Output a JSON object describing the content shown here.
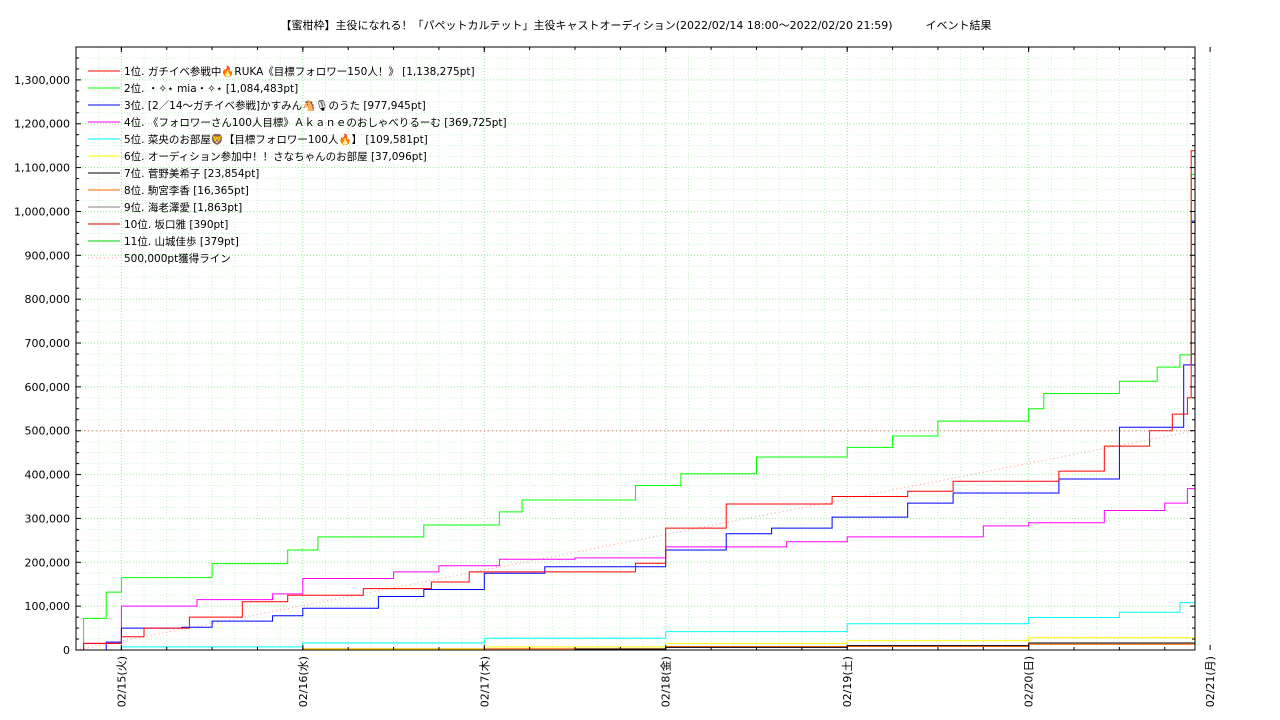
{
  "chart_data": {
    "type": "line",
    "title": "【蜜柑枠】主役になれる！「パペットカルテット」主役キャストオーディション(2022/02/14 18:00〜2022/02/20 21:59)　　　イベント結果",
    "xlabel": "",
    "ylabel": "",
    "ylim": [
      0,
      1375000
    ],
    "xlim": [
      "2022/02/14 18:00",
      "2022/02/20 22:00"
    ],
    "x_ticks": [
      "02/15(火)",
      "02/16(水)",
      "02/17(木)",
      "02/18(金)",
      "02/19(土)",
      "02/20(日)",
      "02/21(月)"
    ],
    "y_ticks": [
      "0",
      "100,000",
      "200,000",
      "300,000",
      "400,000",
      "500,000",
      "600,000",
      "700,000",
      "800,000",
      "900,000",
      "1,000,000",
      "1,100,000",
      "1,200,000",
      "1,300,000"
    ],
    "grid": true,
    "legend_position": "top-left",
    "series": [
      {
        "name": "1位. ガチイベ参戦中🔥RUKA《目標フォロワー150人！》 [1,138,275pt]",
        "color": "#ff0000",
        "x": [
          "2022/02/14 18:00",
          "2022/02/14 19:00",
          "2022/02/14 21:00",
          "2022/02/15 00:00",
          "2022/02/15 03:00",
          "2022/02/15 09:00",
          "2022/02/15 16:00",
          "2022/02/15 22:00",
          "2022/02/16 08:00",
          "2022/02/16 17:00",
          "2022/02/16 22:00",
          "2022/02/17 08:00",
          "2022/02/17 20:00",
          "2022/02/18 00:00",
          "2022/02/18 08:00",
          "2022/02/18 14:00",
          "2022/02/18 22:00",
          "2022/02/19 08:00",
          "2022/02/19 14:00",
          "2022/02/19 22:00",
          "2022/02/20 04:00",
          "2022/02/20 10:00",
          "2022/02/20 16:00",
          "2022/02/20 19:00",
          "2022/02/20 21:00",
          "2022/02/20 21:30",
          "2022/02/20 22:00"
        ],
        "y": [
          0,
          15000,
          15000,
          30000,
          50000,
          75000,
          110000,
          125000,
          140000,
          155000,
          178000,
          178000,
          198000,
          278000,
          333000,
          333000,
          350000,
          362000,
          385000,
          385000,
          408000,
          465000,
          500000,
          538000,
          575000,
          1138275,
          1138275
        ]
      },
      {
        "name": "2位. ・✧⋆ mia・✧⋆ [1,084,483pt]",
        "color": "#00ff00",
        "x": [
          "2022/02/14 18:00",
          "2022/02/14 19:00",
          "2022/02/14 20:00",
          "2022/02/14 22:00",
          "2022/02/15 00:00",
          "2022/02/15 12:00",
          "2022/02/15 22:00",
          "2022/02/16 02:00",
          "2022/02/16 16:00",
          "2022/02/17 02:00",
          "2022/02/17 05:00",
          "2022/02/17 20:00",
          "2022/02/18 02:00",
          "2022/02/18 12:00",
          "2022/02/19 00:00",
          "2022/02/19 06:00",
          "2022/02/19 12:00",
          "2022/02/20 00:00",
          "2022/02/20 02:00",
          "2022/02/20 12:00",
          "2022/02/20 17:00",
          "2022/02/20 20:00",
          "2022/02/20 21:30",
          "2022/02/20 22:00"
        ],
        "y": [
          0,
          72000,
          72000,
          132000,
          165000,
          197000,
          228000,
          258000,
          285000,
          315000,
          342000,
          375000,
          402000,
          440000,
          462000,
          488000,
          522000,
          550000,
          585000,
          613000,
          645000,
          673000,
          1084483,
          1084483
        ]
      },
      {
        "name": "3位. [2／14〜ガチイベ参戦]かすみん🐴🎙のうた [977,945pt]",
        "color": "#0000ff",
        "x": [
          "2022/02/14 18:00",
          "2022/02/14 20:00",
          "2022/02/14 22:00",
          "2022/02/15 00:00",
          "2022/02/15 08:00",
          "2022/02/15 12:00",
          "2022/02/15 20:00",
          "2022/02/16 00:00",
          "2022/02/16 10:00",
          "2022/02/16 16:00",
          "2022/02/17 00:00",
          "2022/02/17 08:00",
          "2022/02/17 14:00",
          "2022/02/18 00:00",
          "2022/02/18 08:00",
          "2022/02/18 14:00",
          "2022/02/18 22:00",
          "2022/02/19 08:00",
          "2022/02/19 14:00",
          "2022/02/19 22:00",
          "2022/02/20 04:00",
          "2022/02/20 12:00",
          "2022/02/20 19:00",
          "2022/02/20 20:30",
          "2022/02/20 21:30",
          "2022/02/20 22:00"
        ],
        "y": [
          0,
          0,
          18000,
          50000,
          52000,
          66000,
          78000,
          95000,
          122000,
          138000,
          175000,
          190000,
          190000,
          228000,
          265000,
          278000,
          303000,
          335000,
          358000,
          358000,
          390000,
          508000,
          508000,
          650000,
          977945,
          977945
        ]
      },
      {
        "name": "4位. 《フォロワーさん100人目標》Ａｋａｎｅのおしゃべりるーむ [369,725pt]",
        "color": "#ff00ff",
        "x": [
          "2022/02/14 18:00",
          "2022/02/14 19:00",
          "2022/02/14 22:00",
          "2022/02/15 00:00",
          "2022/02/15 10:00",
          "2022/02/15 20:00",
          "2022/02/16 00:00",
          "2022/02/16 12:00",
          "2022/02/16 18:00",
          "2022/02/17 02:00",
          "2022/02/17 12:00",
          "2022/02/18 00:00",
          "2022/02/18 16:00",
          "2022/02/19 00:00",
          "2022/02/19 18:00",
          "2022/02/20 00:00",
          "2022/02/20 10:00",
          "2022/02/20 18:00",
          "2022/02/20 21:00",
          "2022/02/20 22:00"
        ],
        "y": [
          0,
          15000,
          15000,
          100000,
          115000,
          128000,
          163000,
          178000,
          192000,
          207000,
          210000,
          235000,
          247000,
          258000,
          283000,
          290000,
          318000,
          335000,
          368000,
          369725
        ]
      },
      {
        "name": "5位. 菜央のお部屋🦁【目標フォロワー100人🔥】 [109,581pt]",
        "color": "#00ffff",
        "x": [
          "2022/02/14 18:00",
          "2022/02/15 00:00",
          "2022/02/16 00:00",
          "2022/02/17 00:00",
          "2022/02/18 00:00",
          "2022/02/19 00:00",
          "2022/02/20 00:00",
          "2022/02/20 12:00",
          "2022/02/20 20:00",
          "2022/02/20 22:00"
        ],
        "y": [
          0,
          7000,
          16000,
          27000,
          42000,
          60000,
          74000,
          86000,
          108000,
          109581
        ]
      },
      {
        "name": "6位. オーディション参加中！！さなちゃんのお部屋 [37,096pt]",
        "color": "#ffff00",
        "x": [
          "2022/02/14 18:00",
          "2022/02/16 00:00",
          "2022/02/17 00:00",
          "2022/02/18 00:00",
          "2022/02/19 00:00",
          "2022/02/20 00:00",
          "2022/02/20 22:00"
        ],
        "y": [
          0,
          2000,
          7000,
          15000,
          21000,
          28000,
          37096
        ]
      },
      {
        "name": "7位. 菅野美希子 [23,854pt]",
        "color": "#000000",
        "x": [
          "2022/02/14 18:00",
          "2022/02/17 12:00",
          "2022/02/18 00:00",
          "2022/02/19 00:00",
          "2022/02/20 00:00",
          "2022/02/20 22:00"
        ],
        "y": [
          0,
          2000,
          6000,
          10000,
          16000,
          23854
        ]
      },
      {
        "name": "8位. 駒宮李香 [16,365pt]",
        "color": "#ff6600",
        "x": [
          "2022/02/14 18:00",
          "2022/02/16 00:00",
          "2022/02/18 00:00",
          "2022/02/20 00:00",
          "2022/02/20 22:00"
        ],
        "y": [
          0,
          3000,
          8000,
          13000,
          16365
        ]
      },
      {
        "name": "9位. 海老澤愛 [1,863pt]",
        "color": "#808080",
        "x": [
          "2022/02/14 18:00",
          "2022/02/20 22:00"
        ],
        "y": [
          0,
          1863
        ]
      },
      {
        "name": "10位. 坂口雅 [390pt]",
        "color": "#cc0000",
        "x": [
          "2022/02/14 18:00",
          "2022/02/20 22:00"
        ],
        "y": [
          0,
          390
        ]
      },
      {
        "name": "11位. 山城佳歩 [379pt]",
        "color": "#00cc00",
        "x": [
          "2022/02/14 18:00",
          "2022/02/20 22:00"
        ],
        "y": [
          0,
          379
        ]
      },
      {
        "name": "500,000pt獲得ライン",
        "color": "#ff9999",
        "dashed": true,
        "x": [
          "2022/02/14 18:00",
          "2022/02/20 22:00"
        ],
        "y": [
          0,
          500000
        ]
      }
    ]
  }
}
